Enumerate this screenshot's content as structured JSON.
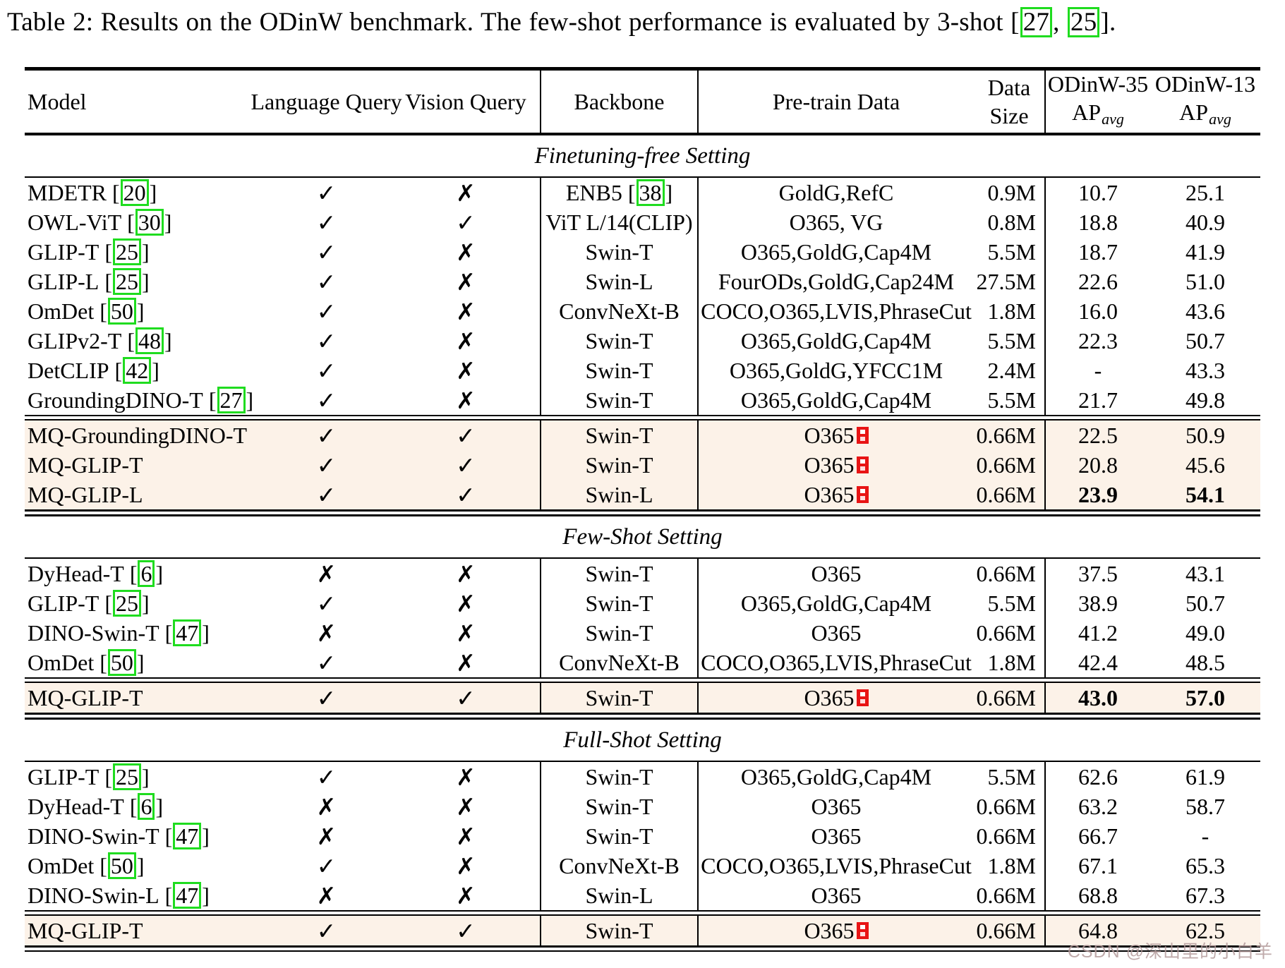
{
  "caption": {
    "text": "Table 2: Results on the ODinW benchmark. The few-shot performance is evaluated by 3-shot",
    "open": " [",
    "cite1": "27",
    "sep": ", ",
    "cite2": "25",
    "close": "]."
  },
  "watermark": "CSDN @深山里的小白羊",
  "colors": {
    "highlight_row_bg": "#fcf2e8",
    "citation_box_green": "#1fdc1f",
    "footnote_box_red": "#e81414",
    "text": "#000000",
    "watermark_gray_pink": "#b49c9c"
  },
  "icons": {
    "check_mark": "✓",
    "cross_mark": "✗",
    "footnote_marker": "red-box-superscript"
  },
  "table": {
    "punct": {
      "open": "[",
      "close": "]"
    },
    "header": {
      "model": "Model",
      "language_query": "Language Query",
      "vision_query": "Vision Query",
      "backbone": "Backbone",
      "pretrain_data": "Pre-train Data",
      "data_size_line1": "Data",
      "data_size_line2": "Size",
      "odinw35": "ODinW-35",
      "odinw13": "ODinW-13",
      "ap": "AP",
      "ap_sub": "avg"
    },
    "sections": [
      {
        "title": "Finetuning-free Setting",
        "rows": [
          {
            "model": "MDETR",
            "cite": "20",
            "lang": "✓",
            "vision": "✗",
            "backbone": "ENB5",
            "backbone_cite": "38",
            "pretrain": "GoldG,RefC",
            "size": "0.9M",
            "ap35": "10.7",
            "ap13": "25.1"
          },
          {
            "model": "OWL-ViT",
            "cite": "30",
            "lang": "✓",
            "vision": "✓",
            "backbone": "ViT L/14(CLIP)",
            "pretrain": "O365, VG",
            "size": "0.8M",
            "ap35": "18.8",
            "ap13": "40.9"
          },
          {
            "model": "GLIP-T",
            "cite": "25",
            "lang": "✓",
            "vision": "✗",
            "backbone": "Swin-T",
            "pretrain": "O365,GoldG,Cap4M",
            "size": "5.5M",
            "ap35": "18.7",
            "ap13": "41.9"
          },
          {
            "model": "GLIP-L",
            "cite": "25",
            "lang": "✓",
            "vision": "✗",
            "backbone": "Swin-L",
            "pretrain": "FourODs,GoldG,Cap24M",
            "size": "27.5M",
            "ap35": "22.6",
            "ap13": "51.0"
          },
          {
            "model": "OmDet",
            "cite": "50",
            "lang": "✓",
            "vision": "✗",
            "backbone": "ConvNeXt-B",
            "pretrain": "COCO,O365,LVIS,PhraseCut",
            "size": "1.8M",
            "ap35": "16.0",
            "ap13": "43.6"
          },
          {
            "model": "GLIPv2-T",
            "cite": "48",
            "lang": "✓",
            "vision": "✗",
            "backbone": "Swin-T",
            "pretrain": "O365,GoldG,Cap4M",
            "size": "5.5M",
            "ap35": "22.3",
            "ap13": "50.7"
          },
          {
            "model": "DetCLIP",
            "cite": "42",
            "lang": "✓",
            "vision": "✗",
            "backbone": "Swin-T",
            "pretrain": "O365,GoldG,YFCC1M",
            "size": "2.4M",
            "ap35": "-",
            "ap13": "43.3"
          },
          {
            "model": "GroundingDINO-T",
            "cite": "27",
            "lang": "✓",
            "vision": "✗",
            "backbone": "Swin-T",
            "pretrain": "O365,GoldG,Cap4M",
            "size": "5.5M",
            "ap35": "21.7",
            "ap13": "49.8"
          }
        ],
        "highlight_rows": [
          {
            "model": "MQ-GroundingDINO-T",
            "lang": "✓",
            "vision": "✓",
            "backbone": "Swin-T",
            "pretrain": "O365",
            "footnote": true,
            "size": "0.66M",
            "ap35": "22.5",
            "ap13": "50.9"
          },
          {
            "model": "MQ-GLIP-T",
            "lang": "✓",
            "vision": "✓",
            "backbone": "Swin-T",
            "pretrain": "O365",
            "footnote": true,
            "size": "0.66M",
            "ap35": "20.8",
            "ap13": "45.6"
          },
          {
            "model": "MQ-GLIP-L",
            "lang": "✓",
            "vision": "✓",
            "backbone": "Swin-L",
            "pretrain": "O365",
            "footnote": true,
            "size": "0.66M",
            "ap35": "23.9",
            "ap13": "54.1",
            "bold": true
          }
        ]
      },
      {
        "title": "Few-Shot Setting",
        "rows": [
          {
            "model": "DyHead-T",
            "cite": "6",
            "lang": "✗",
            "vision": "✗",
            "backbone": "Swin-T",
            "pretrain": "O365",
            "size": "0.66M",
            "ap35": "37.5",
            "ap13": "43.1"
          },
          {
            "model": "GLIP-T",
            "cite": "25",
            "lang": "✓",
            "vision": "✗",
            "backbone": "Swin-T",
            "pretrain": "O365,GoldG,Cap4M",
            "size": "5.5M",
            "ap35": "38.9",
            "ap13": "50.7"
          },
          {
            "model": "DINO-Swin-T",
            "cite": "47",
            "lang": "✗",
            "vision": "✗",
            "backbone": "Swin-T",
            "pretrain": "O365",
            "size": "0.66M",
            "ap35": "41.2",
            "ap13": "49.0"
          },
          {
            "model": "OmDet",
            "cite": "50",
            "lang": "✓",
            "vision": "✗",
            "backbone": "ConvNeXt-B",
            "pretrain": "COCO,O365,LVIS,PhraseCut",
            "size": "1.8M",
            "ap35": "42.4",
            "ap13": "48.5"
          }
        ],
        "highlight_rows": [
          {
            "model": "MQ-GLIP-T",
            "lang": "✓",
            "vision": "✓",
            "backbone": "Swin-T",
            "pretrain": "O365",
            "footnote": true,
            "size": "0.66M",
            "ap35": "43.0",
            "ap13": "57.0",
            "bold": true
          }
        ]
      },
      {
        "title": "Full-Shot Setting",
        "rows": [
          {
            "model": "GLIP-T",
            "cite": "25",
            "lang": "✓",
            "vision": "✗",
            "backbone": "Swin-T",
            "pretrain": "O365,GoldG,Cap4M",
            "size": "5.5M",
            "ap35": "62.6",
            "ap13": "61.9"
          },
          {
            "model": "DyHead-T",
            "cite": "6",
            "lang": "✗",
            "vision": "✗",
            "backbone": "Swin-T",
            "pretrain": "O365",
            "size": "0.66M",
            "ap35": "63.2",
            "ap13": "58.7"
          },
          {
            "model": "DINO-Swin-T",
            "cite": "47",
            "lang": "✗",
            "vision": "✗",
            "backbone": "Swin-T",
            "pretrain": "O365",
            "size": "0.66M",
            "ap35": "66.7",
            "ap13": "-"
          },
          {
            "model": "OmDet",
            "cite": "50",
            "lang": "✓",
            "vision": "✗",
            "backbone": "ConvNeXt-B",
            "pretrain": "COCO,O365,LVIS,PhraseCut",
            "size": "1.8M",
            "ap35": "67.1",
            "ap13": "65.3"
          },
          {
            "model": "DINO-Swin-L",
            "cite": "47",
            "lang": "✗",
            "vision": "✗",
            "backbone": "Swin-L",
            "pretrain": "O365",
            "size": "0.66M",
            "ap35": "68.8",
            "ap13": "67.3"
          }
        ],
        "highlight_rows": [
          {
            "model": "MQ-GLIP-T",
            "lang": "✓",
            "vision": "✓",
            "backbone": "Swin-T",
            "pretrain": "O365",
            "footnote": true,
            "size": "0.66M",
            "ap35": "64.8",
            "ap13": "62.5"
          }
        ]
      }
    ]
  }
}
